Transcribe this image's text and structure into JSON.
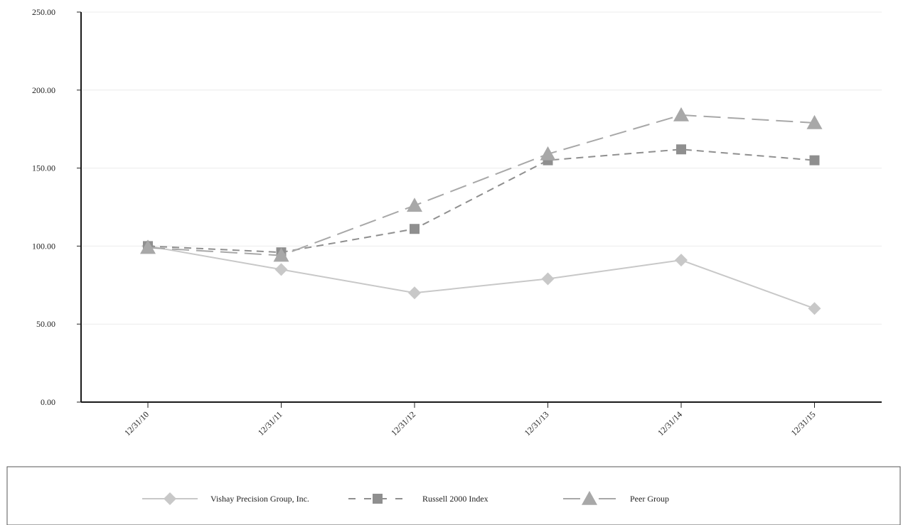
{
  "chart_data": {
    "type": "line",
    "title": "",
    "xlabel": "",
    "ylabel": "",
    "categories": [
      "12/31/10",
      "12/31/11",
      "12/31/12",
      "12/31/13",
      "12/31/14",
      "12/31/15"
    ],
    "ylim": [
      0,
      250
    ],
    "yticks": [
      "0.00",
      "50.00",
      "100.00",
      "150.00",
      "200.00",
      "250.00"
    ],
    "grid": true,
    "legend_position": "bottom",
    "series": [
      {
        "name": "Vishay Precision Group, Inc.",
        "values": [
          100,
          85,
          70,
          79,
          91,
          60
        ],
        "marker": "diamond",
        "dash": "solid",
        "color": "#c8c8c8"
      },
      {
        "name": "Russell 2000 Index",
        "values": [
          100,
          96,
          111,
          155,
          162,
          155
        ],
        "marker": "square",
        "dash": "short-dash",
        "color": "#8f8f8f"
      },
      {
        "name": "Peer Group",
        "values": [
          99,
          94,
          126,
          159,
          184,
          179
        ],
        "marker": "triangle",
        "dash": "long-dash",
        "color": "#a8a8a8"
      }
    ]
  }
}
